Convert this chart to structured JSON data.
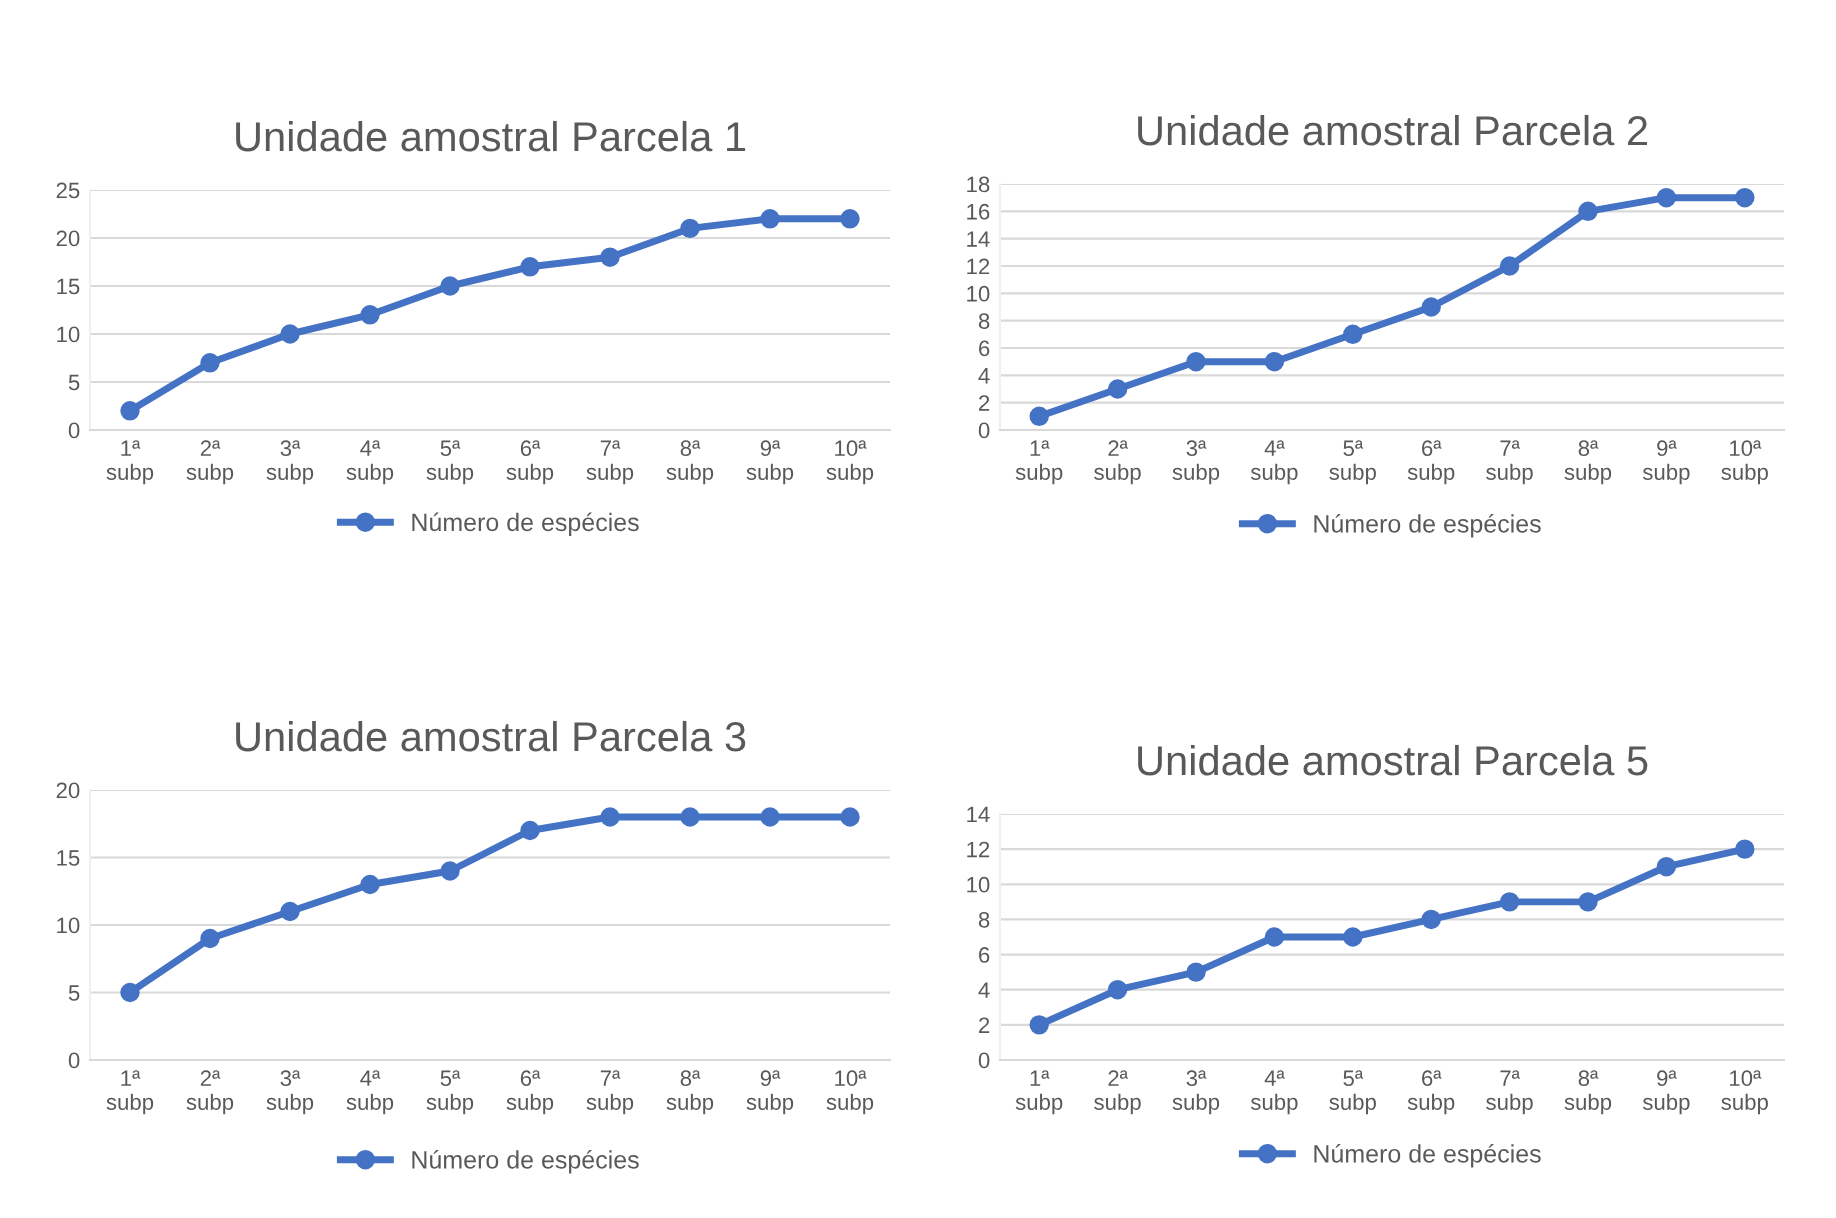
{
  "chart_data": [
    {
      "type": "line",
      "title": "Unidade amostral Parcela 1",
      "categories": [
        "1ª\nsubp",
        "2ª\nsubp",
        "3ª\nsubp",
        "4ª\nsubp",
        "5ª\nsubp",
        "6ª\nsubp",
        "7ª\nsubp",
        "8ª\nsubp",
        "9ª\nsubp",
        "10ª\nsubp"
      ],
      "series": [
        {
          "name": "Número de espécies",
          "color": "#4472c4",
          "values": [
            2,
            7,
            10,
            12,
            15,
            17,
            18,
            21,
            22,
            22
          ]
        }
      ],
      "ylim": [
        0,
        25
      ],
      "yticks": [
        0,
        5,
        10,
        15,
        20,
        25
      ],
      "grid": "y",
      "legend": "bottom",
      "marker": "circle",
      "line_style": "solid"
    },
    {
      "type": "line",
      "title": "Unidade amostral Parcela 2",
      "categories": [
        "1ª\nsubp",
        "2ª\nsubp",
        "3ª\nsubp",
        "4ª\nsubp",
        "5ª\nsubp",
        "6ª\nsubp",
        "7ª\nsubp",
        "8ª\nsubp",
        "9ª\nsubp",
        "10ª\nsubp"
      ],
      "series": [
        {
          "name": "Número de espécies",
          "color": "#4472c4",
          "values": [
            1,
            3,
            5,
            5,
            7,
            9,
            12,
            16,
            17,
            17
          ]
        }
      ],
      "ylim": [
        0,
        18
      ],
      "yticks": [
        0,
        2,
        4,
        6,
        8,
        10,
        12,
        14,
        16,
        18
      ],
      "grid": "y",
      "legend": "bottom",
      "marker": "circle",
      "line_style": "solid"
    },
    {
      "type": "line",
      "title": "Unidade amostral Parcela 3",
      "categories": [
        "1ª\nsubp",
        "2ª\nsubp",
        "3ª\nsubp",
        "4ª\nsubp",
        "5ª\nsubp",
        "6ª\nsubp",
        "7ª\nsubp",
        "8ª\nsubp",
        "9ª\nsubp",
        "10ª\nsubp"
      ],
      "series": [
        {
          "name": "Número de espécies",
          "color": "#4472c4",
          "values": [
            5,
            9,
            11,
            13,
            14,
            17,
            18,
            18,
            18,
            18
          ]
        }
      ],
      "ylim": [
        0,
        20
      ],
      "yticks": [
        0,
        5,
        10,
        15,
        20
      ],
      "grid": "y",
      "legend": "bottom",
      "marker": "circle",
      "line_style": "solid"
    },
    {
      "type": "line",
      "title": "Unidade amostral Parcela 5",
      "categories": [
        "1ª\nsubp",
        "2ª\nsubp",
        "3ª\nsubp",
        "4ª\nsubp",
        "5ª\nsubp",
        "6ª\nsubp",
        "7ª\nsubp",
        "8ª\nsubp",
        "9ª\nsubp",
        "10ª\nsubp"
      ],
      "series": [
        {
          "name": "Número de espécies",
          "color": "#4472c4",
          "values": [
            2,
            4,
            5,
            7,
            7,
            8,
            9,
            9,
            11,
            12
          ]
        }
      ],
      "ylim": [
        0,
        14
      ],
      "yticks": [
        0,
        2,
        4,
        6,
        8,
        10,
        12,
        14
      ],
      "grid": "y",
      "legend": "bottom",
      "marker": "circle",
      "line_style": "solid"
    }
  ]
}
